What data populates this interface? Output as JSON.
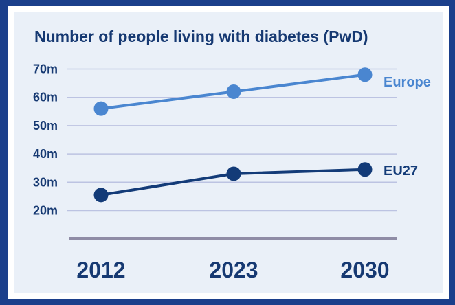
{
  "colors": {
    "frame": "#1b3f8b",
    "background": "#eaf0f8",
    "text": "#163972",
    "europe": "#4a86d0",
    "eu27": "#133b78",
    "grid": "#bcc3e2",
    "baseline": "#8f8ca6"
  },
  "chart_data": {
    "type": "line",
    "title": "Number of people living with diabetes (PwD)",
    "xlabel": "",
    "ylabel": "",
    "categories": [
      "2012",
      "2023",
      "2030"
    ],
    "yticks": [
      20,
      30,
      40,
      50,
      60,
      70
    ],
    "ytick_labels": [
      "20m",
      "30m",
      "40m",
      "50m",
      "60m",
      "70m"
    ],
    "ylim": [
      10,
      70
    ],
    "grid": true,
    "legend": "direct labels at right end of each line",
    "series": [
      {
        "name": "Europe",
        "values": [
          56,
          62,
          68
        ],
        "color": "#4a86d0"
      },
      {
        "name": "EU27",
        "values": [
          25.5,
          33,
          34.5
        ],
        "color": "#133b78"
      }
    ]
  }
}
